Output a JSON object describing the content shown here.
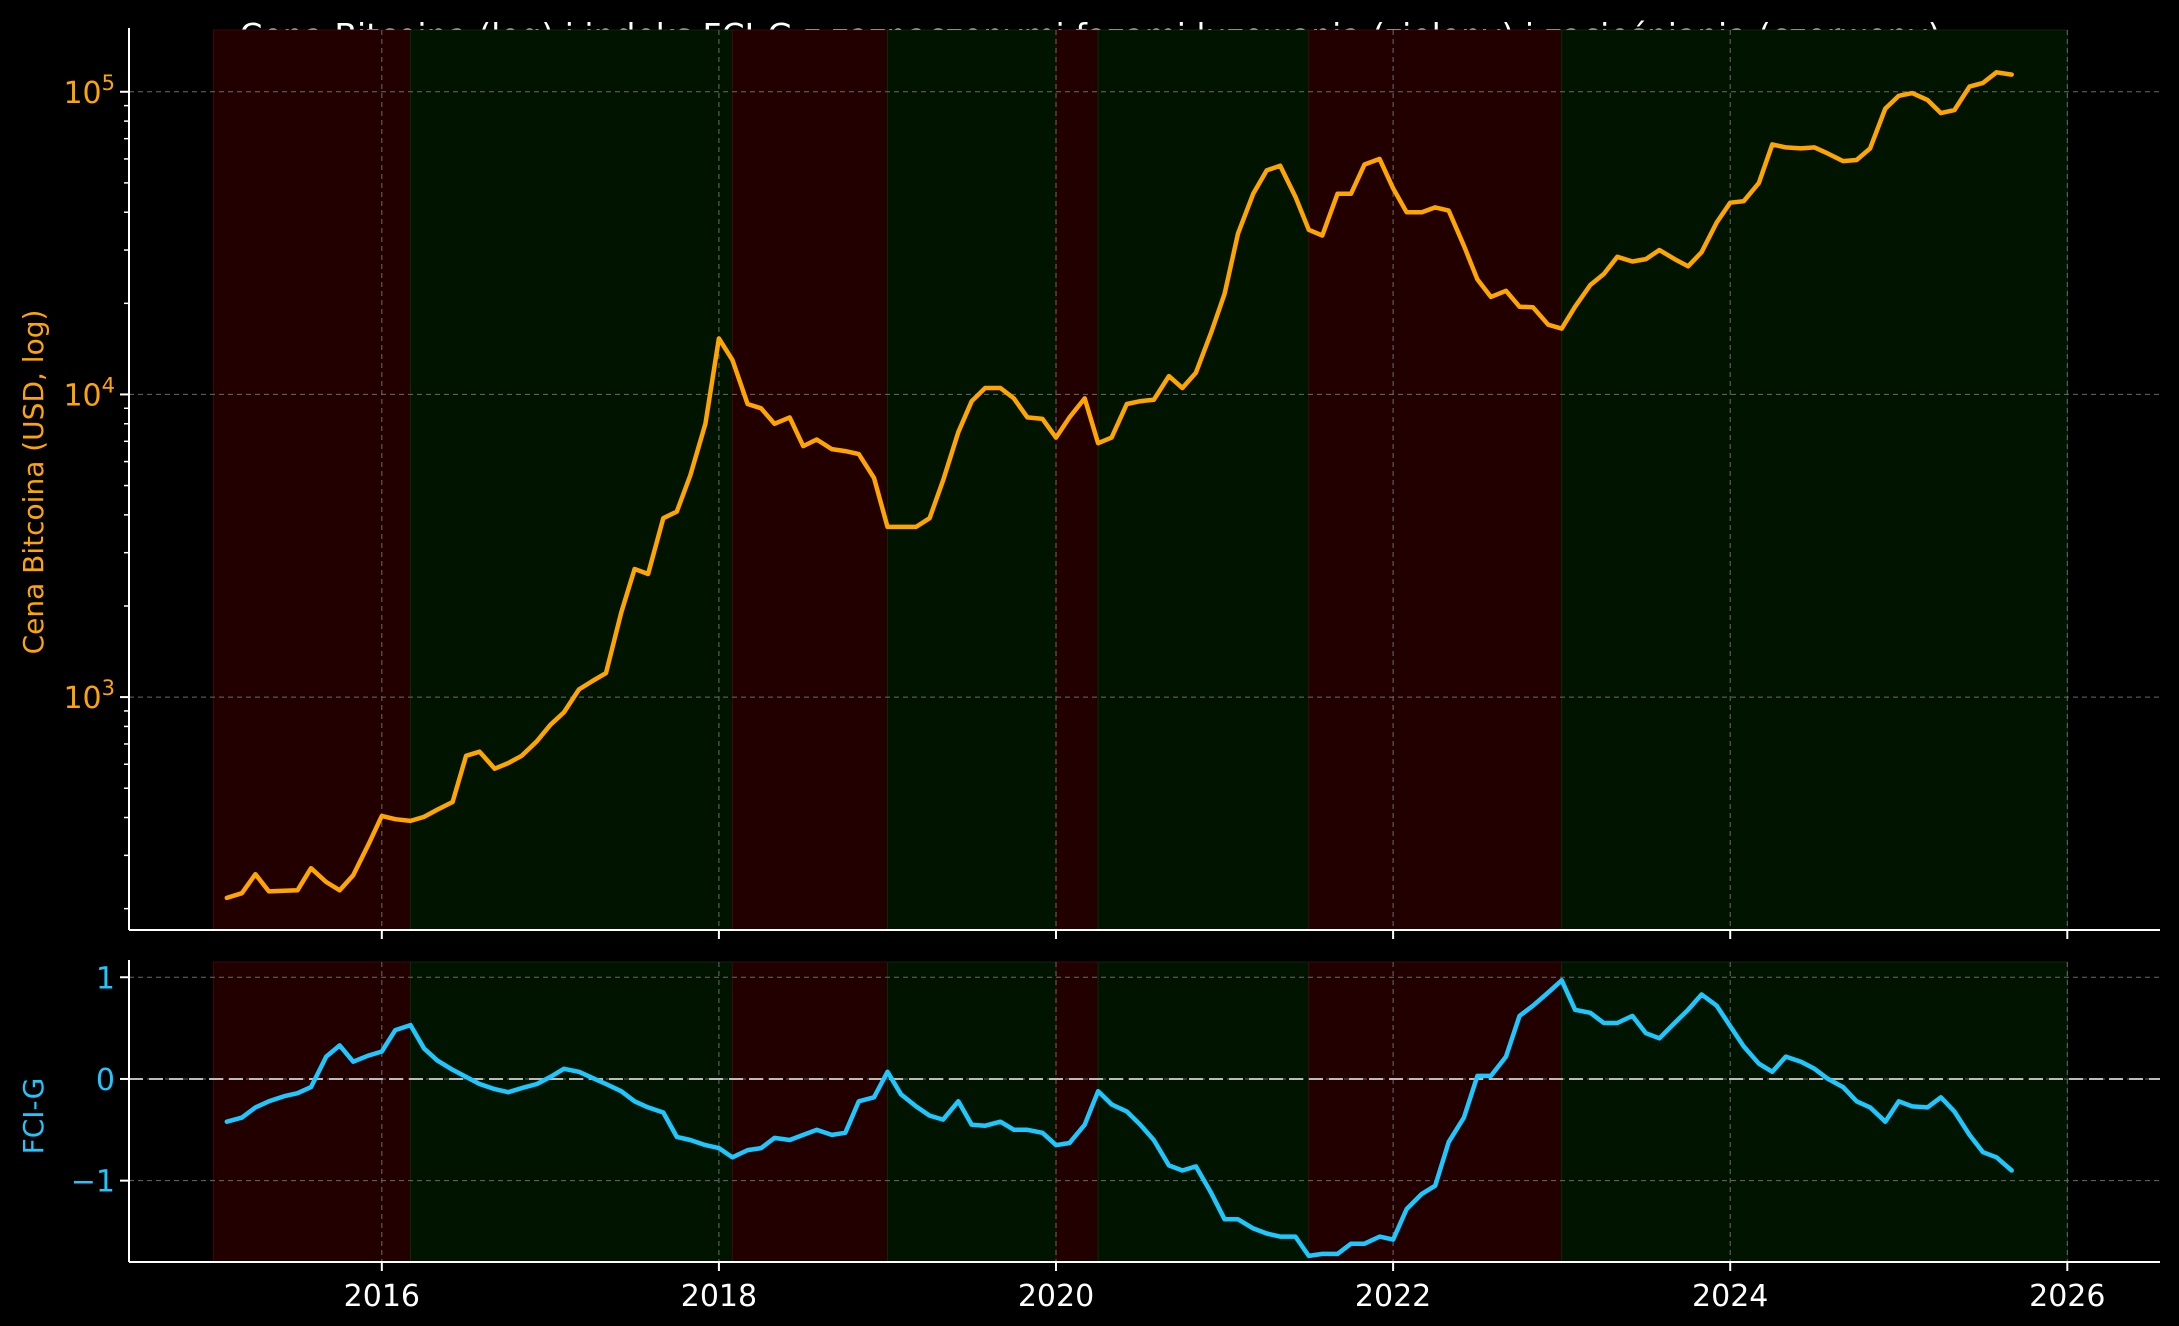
{
  "chart_data": [
    {
      "type": "line",
      "title": "Cena Bitcoina (log) i indeks FCI-G z zaznaczonymi fazami luzowania (zielony) i zacieśniania (czerwony)",
      "ylabel": "Cena Bitcoina (USD, log)",
      "yscale": "log",
      "ylim": [
        170,
        160000
      ],
      "xlim": [
        2014.5,
        2026.55
      ],
      "x_ticks": [
        2016,
        2018,
        2020,
        2022,
        2024,
        2026
      ],
      "y_ticks": [
        {
          "value": 1000,
          "base": "10",
          "exp": "3"
        },
        {
          "value": 10000,
          "base": "10",
          "exp": "4"
        },
        {
          "value": 100000,
          "base": "10",
          "exp": "5"
        }
      ],
      "grid": true,
      "line_color": "#ffa500",
      "phases": [
        {
          "start": 2015.0,
          "end": 2016.17,
          "type": "tightening"
        },
        {
          "start": 2016.17,
          "end": 2018.08,
          "type": "easing"
        },
        {
          "start": 2018.08,
          "end": 2019.0,
          "type": "tightening"
        },
        {
          "start": 2019.0,
          "end": 2020.0,
          "type": "easing"
        },
        {
          "start": 2020.0,
          "end": 2020.25,
          "type": "tightening"
        },
        {
          "start": 2020.25,
          "end": 2021.5,
          "type": "easing"
        },
        {
          "start": 2021.5,
          "end": 2023.0,
          "type": "tightening"
        },
        {
          "start": 2023.0,
          "end": 2026.0,
          "type": "easing"
        }
      ],
      "phase_colors": {
        "easing": "#001400",
        "tightening": "#230000"
      },
      "series": [
        {
          "x": [
            2015.08,
            2015.17,
            2015.25,
            2015.33,
            2015.42,
            2015.5,
            2015.58,
            2015.67,
            2015.75,
            2015.83,
            2015.92,
            2016.0,
            2016.08,
            2016.17,
            2016.25,
            2016.33,
            2016.42,
            2016.5,
            2016.58,
            2016.67,
            2016.75,
            2016.83,
            2016.92,
            2017.0,
            2017.08,
            2017.17,
            2017.25,
            2017.33,
            2017.42,
            2017.5,
            2017.58,
            2017.67,
            2017.75,
            2017.83,
            2017.92,
            2018.0,
            2018.08,
            2018.17,
            2018.25,
            2018.33,
            2018.42,
            2018.5,
            2018.58,
            2018.67,
            2018.75,
            2018.83,
            2018.92,
            2019.0,
            2019.08,
            2019.17,
            2019.25,
            2019.33,
            2019.42,
            2019.5,
            2019.58,
            2019.67,
            2019.75,
            2019.83,
            2019.92,
            2020.0,
            2020.08,
            2020.17,
            2020.25,
            2020.33,
            2020.42,
            2020.5,
            2020.58,
            2020.67,
            2020.75,
            2020.83,
            2020.92,
            2021.0,
            2021.08,
            2021.17,
            2021.25,
            2021.33,
            2021.42,
            2021.5,
            2021.58,
            2021.67,
            2021.75,
            2021.83,
            2021.92,
            2022.0,
            2022.08,
            2022.17,
            2022.25,
            2022.33,
            2022.42,
            2022.5,
            2022.58,
            2022.67,
            2022.75,
            2022.83,
            2022.92,
            2023.0,
            2023.08,
            2023.17,
            2023.25,
            2023.33,
            2023.42,
            2023.5,
            2023.58,
            2023.67,
            2023.75,
            2023.83,
            2023.92,
            2024.0,
            2024.08,
            2024.17,
            2024.25,
            2024.33,
            2024.42,
            2024.5,
            2024.58,
            2024.67,
            2024.75,
            2024.83,
            2024.92,
            2025.0,
            2025.08,
            2025.17,
            2025.25,
            2025.33,
            2025.42,
            2025.5,
            2025.58,
            2025.67
          ],
          "y": [
            217,
            225,
            260,
            228,
            229,
            230,
            272,
            245,
            230,
            258,
            325,
            405,
            395,
            390,
            402,
            425,
            450,
            640,
            660,
            580,
            605,
            640,
            715,
            810,
            890,
            1060,
            1130,
            1200,
            1900,
            2650,
            2550,
            3900,
            4100,
            5400,
            8000,
            15300,
            13000,
            9300,
            9000,
            8000,
            8400,
            6750,
            7100,
            6600,
            6500,
            6350,
            5300,
            3650,
            3650,
            3650,
            3900,
            5200,
            7500,
            9500,
            10500,
            10500,
            9700,
            8400,
            8300,
            7200,
            8400,
            9700,
            6900,
            7200,
            9300,
            9500,
            9600,
            11500,
            10500,
            11800,
            16000,
            21500,
            34000,
            46000,
            55000,
            57000,
            45000,
            35000,
            33500,
            46000,
            46000,
            57500,
            60000,
            48000,
            40000,
            40000,
            41500,
            40500,
            31000,
            24000,
            21000,
            22000,
            19500,
            19400,
            17000,
            16500,
            19500,
            23000,
            25000,
            28500,
            27500,
            28000,
            30000,
            28000,
            26500,
            29500,
            37000,
            43000,
            43500,
            50000,
            67000,
            65500,
            65000,
            65500,
            62500,
            59000,
            59500,
            65000,
            88000,
            97000,
            99000,
            94000,
            85000,
            87000,
            104000,
            107000,
            116000,
            114000
          ]
        }
      ]
    },
    {
      "type": "line",
      "ylabel": "FCI-G",
      "ylim": [
        -1.8,
        1.15
      ],
      "xlim": [
        2014.5,
        2026.55
      ],
      "x_ticks": [
        2016,
        2018,
        2020,
        2022,
        2024,
        2026
      ],
      "y_ticks": [
        {
          "value": 1,
          "label": "1"
        },
        {
          "value": 0,
          "label": "0"
        },
        {
          "value": -1,
          "label": "−1"
        }
      ],
      "reference_line": 0,
      "grid": true,
      "line_color": "#1ec8ff",
      "series": [
        {
          "x": [
            2015.08,
            2015.17,
            2015.25,
            2015.33,
            2015.42,
            2015.5,
            2015.58,
            2015.67,
            2015.75,
            2015.83,
            2015.92,
            2016.0,
            2016.08,
            2016.17,
            2016.25,
            2016.33,
            2016.42,
            2016.5,
            2016.58,
            2016.67,
            2016.75,
            2016.83,
            2016.92,
            2017.0,
            2017.08,
            2017.17,
            2017.25,
            2017.33,
            2017.42,
            2017.5,
            2017.58,
            2017.67,
            2017.75,
            2017.83,
            2017.92,
            2018.0,
            2018.08,
            2018.17,
            2018.25,
            2018.33,
            2018.42,
            2018.5,
            2018.58,
            2018.67,
            2018.75,
            2018.83,
            2018.92,
            2019.0,
            2019.08,
            2019.17,
            2019.25,
            2019.33,
            2019.42,
            2019.5,
            2019.58,
            2019.67,
            2019.75,
            2019.83,
            2019.92,
            2020.0,
            2020.08,
            2020.17,
            2020.25,
            2020.33,
            2020.42,
            2020.5,
            2020.58,
            2020.67,
            2020.75,
            2020.83,
            2020.92,
            2021.0,
            2021.08,
            2021.17,
            2021.25,
            2021.33,
            2021.42,
            2021.5,
            2021.58,
            2021.67,
            2021.75,
            2021.83,
            2021.92,
            2022.0,
            2022.08,
            2022.17,
            2022.25,
            2022.33,
            2022.42,
            2022.5,
            2022.58,
            2022.67,
            2022.75,
            2022.83,
            2022.92,
            2023.0,
            2023.08,
            2023.17,
            2023.25,
            2023.33,
            2023.42,
            2023.5,
            2023.58,
            2023.67,
            2023.75,
            2023.83,
            2023.92,
            2024.0,
            2024.08,
            2024.17,
            2024.25,
            2024.33,
            2024.42,
            2024.5,
            2024.58,
            2024.67,
            2024.75,
            2024.83,
            2024.92,
            2025.0,
            2025.08,
            2025.17,
            2025.25,
            2025.33,
            2025.42,
            2025.5,
            2025.58,
            2025.67
          ],
          "y": [
            -0.42,
            -0.38,
            -0.28,
            -0.22,
            -0.17,
            -0.14,
            -0.08,
            0.22,
            0.33,
            0.17,
            0.23,
            0.27,
            0.48,
            0.53,
            0.3,
            0.18,
            0.09,
            0.02,
            -0.05,
            -0.1,
            -0.13,
            -0.09,
            -0.05,
            0.02,
            0.1,
            0.07,
            0.01,
            -0.05,
            -0.12,
            -0.22,
            -0.28,
            -0.33,
            -0.57,
            -0.6,
            -0.65,
            -0.68,
            -0.77,
            -0.7,
            -0.68,
            -0.58,
            -0.6,
            -0.55,
            -0.5,
            -0.55,
            -0.53,
            -0.22,
            -0.18,
            0.07,
            -0.15,
            -0.27,
            -0.36,
            -0.4,
            -0.22,
            -0.45,
            -0.46,
            -0.42,
            -0.5,
            -0.5,
            -0.53,
            -0.65,
            -0.63,
            -0.45,
            -0.12,
            -0.25,
            -0.32,
            -0.45,
            -0.6,
            -0.85,
            -0.9,
            -0.86,
            -1.12,
            -1.38,
            -1.38,
            -1.47,
            -1.52,
            -1.55,
            -1.55,
            -1.74,
            -1.72,
            -1.72,
            -1.62,
            -1.62,
            -1.55,
            -1.58,
            -1.28,
            -1.13,
            -1.05,
            -0.62,
            -0.38,
            0.03,
            0.03,
            0.22,
            0.62,
            0.72,
            0.85,
            0.97,
            0.68,
            0.65,
            0.55,
            0.55,
            0.62,
            0.45,
            0.4,
            0.55,
            0.68,
            0.83,
            0.72,
            0.52,
            0.32,
            0.15,
            0.07,
            0.22,
            0.17,
            0.1,
            0.0,
            -0.08,
            -0.22,
            -0.28,
            -0.42,
            -0.22,
            -0.27,
            -0.28,
            -0.18,
            -0.32,
            -0.55,
            -0.72,
            -0.77,
            -0.9
          ]
        }
      ]
    }
  ]
}
